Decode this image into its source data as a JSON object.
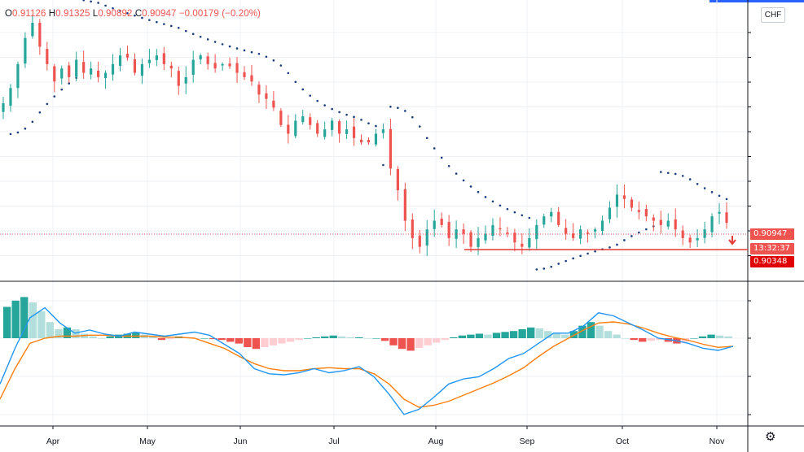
{
  "ohlc": {
    "open_key": "O",
    "open": "0.91126",
    "high_key": "H",
    "high": "0.91325",
    "low_key": "L",
    "low": "0.90892",
    "close_key": "C",
    "close": "0.90947",
    "change": "−0.00179 (−0.20%)"
  },
  "currency_badge": "CHF",
  "price_labels": {
    "last_price": "0.90947",
    "countdown": "13:32:37",
    "support_level": "0.90348"
  },
  "colors": {
    "up": "#26a69a",
    "down": "#ef5350",
    "psar": "#1a3c7a",
    "macd_line": "#2196f3",
    "signal_line": "#ff7f0e",
    "hist_up_strong": "#26a69a",
    "hist_up_weak": "#b2dfdb",
    "hist_down_strong": "#ef5350",
    "hist_down_weak": "#ffcdd2",
    "support_line": "#e53935"
  },
  "icons": {
    "settings": "gear-icon",
    "direction_marker": "down-arrow-icon"
  },
  "chart_data": {
    "type": "candlestick",
    "x_labels": [
      "Apr",
      "May",
      "Jun",
      "Jul",
      "Aug",
      "Sep",
      "Oct",
      "Nov"
    ],
    "close_trajectory": [
      0.937,
      0.9405,
      0.946,
      0.952,
      0.9555,
      0.95,
      0.946,
      0.942,
      0.945,
      0.943,
      0.947,
      0.944,
      0.945,
      0.943,
      0.944,
      0.946,
      0.948,
      0.9475,
      0.944,
      0.946,
      0.947,
      0.948,
      0.946,
      0.945,
      0.941,
      0.943,
      0.947,
      0.948,
      0.946,
      0.945,
      0.946,
      0.9455,
      0.944,
      0.943,
      0.942,
      0.939,
      0.938,
      0.936,
      0.932,
      0.93,
      0.933,
      0.934,
      0.932,
      0.93,
      0.931,
      0.933,
      0.93,
      0.931,
      0.929,
      0.928,
      0.928,
      0.93,
      0.931,
      0.922,
      0.917,
      0.91,
      0.906,
      0.904,
      0.908,
      0.91,
      0.909,
      0.906,
      0.908,
      0.907,
      0.904,
      0.906,
      0.907,
      0.909,
      0.908,
      0.907,
      0.905,
      0.904,
      0.906,
      0.909,
      0.911,
      0.912,
      0.909,
      0.907,
      0.906,
      0.908,
      0.907,
      0.908,
      0.91,
      0.913,
      0.916,
      0.915,
      0.913,
      0.912,
      0.911,
      0.91,
      0.909,
      0.91,
      0.908,
      0.906,
      0.905,
      0.906,
      0.908,
      0.911,
      0.912,
      0.9095
    ],
    "psar_dots": "plotted above/below price per bar",
    "horizontal_lines": [
      {
        "label_ref": "support_level",
        "value": 0.90348
      },
      {
        "label_ref": "last_price",
        "value": 0.90947
      }
    ],
    "macd": {
      "histogram": [
        0.0035,
        0.0042,
        0.0046,
        0.004,
        0.003,
        0.0018,
        0.001,
        0.0012,
        0.001,
        0.0005,
        0.0002,
        0.0,
        0.0002,
        0.0004,
        0.0005,
        0.0006,
        0.0004,
        0.0002,
        -0.0002,
        -0.0001,
        0.0002,
        0.0001,
        0.0,
        0.0,
        -0.0001,
        -0.0002,
        -0.0004,
        -0.0006,
        -0.001,
        -0.0012,
        -0.001,
        -0.0008,
        -0.0006,
        -0.0004,
        -0.0002,
        0.0,
        0.0001,
        0.0002,
        0.0003,
        0.0002,
        0.0001,
        0.0001,
        0.0,
        0.0,
        -0.0003,
        -0.0008,
        -0.0012,
        -0.0014,
        -0.0011,
        -0.0008,
        -0.0005,
        -0.0002,
        0.0001,
        0.0003,
        0.0004,
        0.0005,
        0.0004,
        0.0006,
        0.0007,
        0.0008,
        0.001,
        0.0012,
        0.0011,
        0.0008,
        0.0006,
        0.0004,
        0.0008,
        0.0014,
        0.0018,
        0.0014,
        0.0008,
        0.0004,
        0.0,
        -0.0002,
        -0.0004,
        -0.0003,
        -0.0002,
        -0.0004,
        -0.0006,
        -0.0004,
        0.0,
        0.0002,
        0.0004,
        0.0003,
        0.0002
      ],
      "macd_line": [
        -0.0045,
        -0.001,
        0.002,
        0.003,
        0.0015,
        0.0005,
        0.0008,
        0.0004,
        0.0002,
        0.0006,
        0.0004,
        0.0002,
        0.0004,
        0.0006,
        0.0003,
        -0.0006,
        -0.0015,
        -0.003,
        -0.0035,
        -0.0036,
        -0.0034,
        -0.003,
        -0.0034,
        -0.0032,
        -0.0028,
        -0.0038,
        -0.0055,
        -0.0075,
        -0.007,
        -0.0058,
        -0.0045,
        -0.004,
        -0.0038,
        -0.003,
        -0.002,
        -0.0015,
        -0.0005,
        0.0005,
        0.0005,
        0.0012,
        0.0025,
        0.0022,
        0.0015,
        0.0008,
        0.0,
        -0.0002,
        -0.0005,
        -0.001,
        -0.0012,
        -0.0008
      ],
      "signal_line": [
        -0.006,
        -0.003,
        -0.0005,
        0.0,
        0.0002,
        0.0002,
        0.0003,
        0.0003,
        0.0002,
        0.0002,
        0.0002,
        0.0001,
        0.0001,
        0.0,
        -0.0005,
        -0.001,
        -0.0018,
        -0.0025,
        -0.003,
        -0.0032,
        -0.0032,
        -0.003,
        -0.0029,
        -0.003,
        -0.003,
        -0.0035,
        -0.0045,
        -0.006,
        -0.0068,
        -0.0066,
        -0.0062,
        -0.0056,
        -0.005,
        -0.0044,
        -0.0037,
        -0.0029,
        -0.0018,
        -0.0008,
        0.0,
        0.0008,
        0.0015,
        0.0016,
        0.0014,
        0.001,
        0.0005,
        0.0001,
        -0.0002,
        -0.0006,
        -0.0009,
        -0.0008
      ]
    }
  }
}
